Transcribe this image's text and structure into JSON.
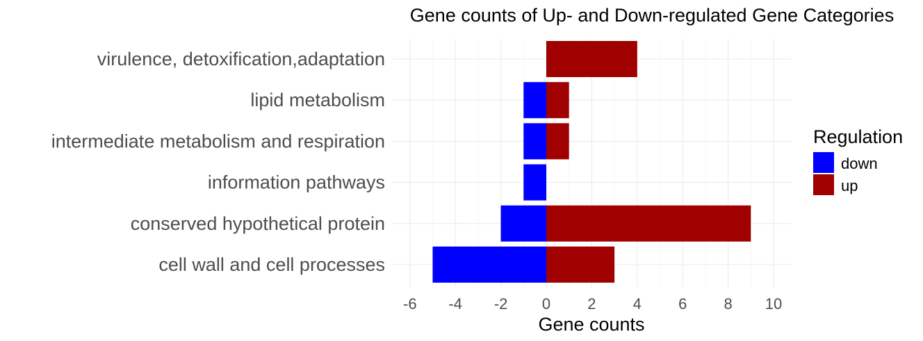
{
  "chart_data": {
    "type": "bar",
    "orientation": "horizontal",
    "title": "Gene counts of Up- and Down-regulated Gene Categories",
    "xlabel": "Gene counts",
    "ylabel": "",
    "xlim": [
      -6,
      10
    ],
    "x_ticks": [
      -6,
      -4,
      -2,
      0,
      2,
      4,
      6,
      8,
      10
    ],
    "categories": [
      "virulence, detoxification,adaptation",
      "lipid metabolism",
      "intermediate metabolism and respiration",
      "information pathways",
      "conserved hypothetical protein",
      "cell wall and cell processes"
    ],
    "series": [
      {
        "name": "down",
        "color": "#0000ff",
        "values": [
          0,
          -1,
          -1,
          -1,
          -2,
          -5
        ]
      },
      {
        "name": "up",
        "color": "#a00000",
        "values": [
          4,
          1,
          1,
          0,
          9,
          3
        ]
      }
    ],
    "grid": true,
    "legend": {
      "title": "Regulation",
      "position": "right"
    }
  }
}
